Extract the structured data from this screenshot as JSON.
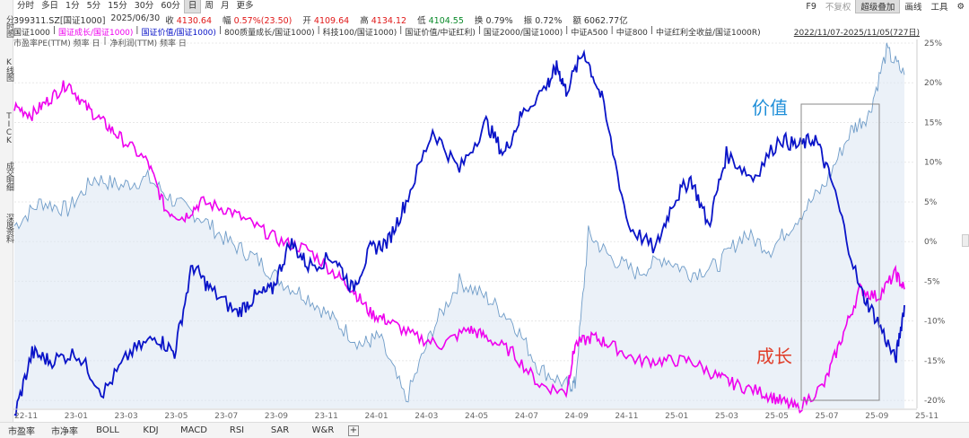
{
  "topbar": {
    "periods": [
      "分时",
      "多日",
      "1分",
      "5分",
      "15分",
      "30分",
      "60分",
      "日",
      "周",
      "月",
      "更多"
    ],
    "active_period": "日",
    "right_controls": [
      "F9",
      "不复权",
      "超级叠加",
      "画线",
      "工具"
    ]
  },
  "info": {
    "code": "399311.SZ[国证1000]",
    "date": "2025/06/30",
    "close_label": "收",
    "close": "4130.64",
    "change_label": "幅",
    "change": "0.57%(23.50)",
    "open_label": "开",
    "open": "4109.64",
    "high_label": "高",
    "high": "4134.12",
    "low_label": "低",
    "low": "4104.55",
    "turnover_label": "换",
    "turnover": "0.79%",
    "amplitude_label": "振",
    "amplitude": "0.72%",
    "amount_label": "额",
    "amount": "6062.77亿"
  },
  "indexes": {
    "items": [
      "国证1000",
      "国证成长/国证1000)",
      "国证价值/国证1000)",
      "800质量成长/国证1000)",
      "科技100/国证1000)",
      "国证价值/中证红利)",
      "国证2000/国证1000)",
      "中证A500",
      "中证800",
      "中证红利全收益/国证1000R)"
    ],
    "date_range": "2022/11/07-2025/11/05(727日)"
  },
  "indicators": [
    "市盈率PE(TTM) 频率 日",
    "净利润(TTM) 频率 日"
  ],
  "left_tabs": [
    "分时图",
    "K线图",
    "TICK",
    "成交明细",
    "深度资料"
  ],
  "colors": {
    "growth": "#ee00ee",
    "value": "#0a14c8",
    "bg_line": "#6f9cc8",
    "anno_value": "#1e8ed8",
    "anno_growth": "#e03c28"
  },
  "annotations": {
    "value": "价值",
    "growth": "成长"
  },
  "chart_data": {
    "type": "line",
    "x_labels": [
      "22-11",
      "23-01",
      "23-03",
      "23-05",
      "23-07",
      "23-09",
      "23-11",
      "24-01",
      "24-03",
      "24-05",
      "24-07",
      "24-09",
      "24-11",
      "25-01",
      "25-03",
      "25-05",
      "25-07",
      "25-09",
      "25-11"
    ],
    "y_ticks": [
      "25%",
      "20%",
      "15%",
      "10%",
      "5%",
      "0%",
      "-5%",
      "-10%",
      "-15%",
      "-20%"
    ],
    "ylim": [
      -21,
      25
    ],
    "series": [
      {
        "name": "国证价值/国证1000)",
        "t": [
          0,
          0.02,
          0.04,
          0.07,
          0.1,
          0.13,
          0.16,
          0.18,
          0.2,
          0.22,
          0.25,
          0.27,
          0.29,
          0.31,
          0.33,
          0.36,
          0.38,
          0.4,
          0.42,
          0.44,
          0.47,
          0.5,
          0.53,
          0.55,
          0.57,
          0.6,
          0.61,
          0.62,
          0.64,
          0.66,
          0.69,
          0.72,
          0.74,
          0.76,
          0.78,
          0.8,
          0.83,
          0.86,
          0.88,
          0.9,
          0.92,
          0.95,
          0.97,
          0.99,
          1
        ],
        "y": [
          -22,
          -14,
          -15,
          -14,
          -19,
          -14,
          -12,
          -14,
          -3,
          -6,
          -9,
          -7,
          -6,
          0,
          -3,
          -2,
          -6,
          -1,
          0,
          5,
          14,
          9,
          15,
          11,
          16,
          20,
          22,
          19,
          24,
          18,
          2,
          -1,
          5,
          8,
          2,
          11,
          8,
          13,
          12,
          13,
          7,
          -6,
          -10,
          -15,
          -8
        ]
      },
      {
        "name": "国证成长/国证1000)",
        "t": [
          0,
          0.02,
          0.04,
          0.06,
          0.08,
          0.1,
          0.12,
          0.15,
          0.17,
          0.19,
          0.21,
          0.24,
          0.27,
          0.3,
          0.33,
          0.36,
          0.38,
          0.4,
          0.42,
          0.45,
          0.48,
          0.51,
          0.53,
          0.56,
          0.59,
          0.62,
          0.63,
          0.65,
          0.67,
          0.7,
          0.73,
          0.76,
          0.79,
          0.81,
          0.84,
          0.86,
          0.88,
          0.91,
          0.93,
          0.95,
          0.97,
          0.99,
          1
        ],
        "y": [
          17,
          16,
          18,
          20,
          17,
          15,
          13,
          10,
          4,
          3,
          5,
          4,
          2,
          0,
          -1,
          -4,
          -6,
          -9,
          -10,
          -12,
          -13,
          -11,
          -12,
          -14,
          -18,
          -19,
          -13,
          -12,
          -13,
          -15,
          -15,
          -15,
          -17,
          -18,
          -19,
          -20,
          -21,
          -18,
          -12,
          -6,
          -7,
          -4,
          -6
        ]
      },
      {
        "name": "市盈率PE(TTM) 频率 日",
        "t": [
          0,
          0.03,
          0.06,
          0.09,
          0.12,
          0.15,
          0.18,
          0.21,
          0.24,
          0.27,
          0.3,
          0.33,
          0.36,
          0.39,
          0.41,
          0.44,
          0.47,
          0.5,
          0.53,
          0.56,
          0.59,
          0.62,
          0.63,
          0.645,
          0.67,
          0.7,
          0.73,
          0.76,
          0.79,
          0.82,
          0.85,
          0.88,
          0.91,
          0.94,
          0.96,
          0.98,
          1
        ],
        "y": [
          2,
          5,
          4,
          8,
          7,
          8,
          5,
          3,
          0,
          -2,
          -5,
          -7,
          -10,
          -13,
          -12,
          -20,
          -11,
          -5,
          -7,
          -10,
          -16,
          -18,
          -18,
          1,
          -2,
          -4,
          -2,
          -4,
          -3,
          1,
          -1,
          3,
          7,
          14,
          16,
          24,
          21
        ]
      }
    ]
  }
}
